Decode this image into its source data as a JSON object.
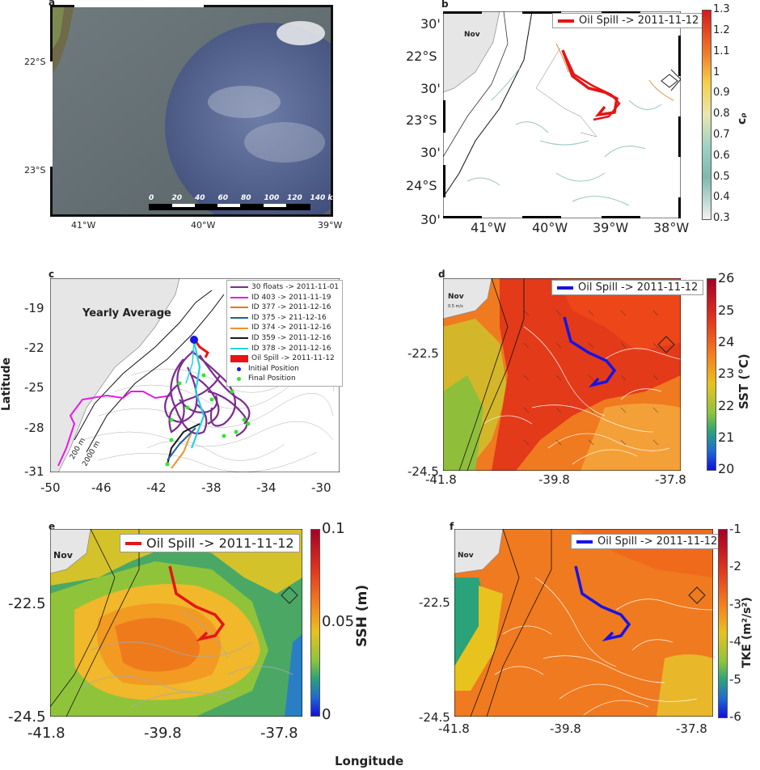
{
  "panels": {
    "a": {
      "label": "a",
      "lat_ticks": [
        "22°S",
        "23°S"
      ],
      "lon_ticks": [
        "41°W",
        "40°W",
        "39°W"
      ],
      "scale_ticks": [
        "0",
        "20",
        "40",
        "60",
        "80",
        "100",
        "120",
        "140 km"
      ]
    },
    "b": {
      "label": "b",
      "lat_ticks": [
        "30'",
        "22°S",
        "30'",
        "23°S",
        "30'",
        "24°S",
        "30'"
      ],
      "lon_ticks": [
        "41°W",
        "40°W",
        "39°W",
        "38°W"
      ],
      "land_label": "Nov",
      "legend": "Oil Spill -> 2011-11-12",
      "colorbar": {
        "title": "cᵨ",
        "ticks": [
          "1.3",
          "1.2",
          "1.1",
          "1",
          "0.9",
          "0.8",
          "0.7",
          "0.6",
          "0.5",
          "0.4",
          "0.3"
        ],
        "range": [
          0.3,
          1.3
        ]
      }
    },
    "c": {
      "label": "c",
      "title": "Yearly Average",
      "ylabel": "Latitude",
      "y_ticks": [
        "-19",
        "-22",
        "-25",
        "-28",
        "-31"
      ],
      "x_ticks": [
        "-50",
        "-46",
        "-42",
        "-38",
        "-34",
        "-30"
      ],
      "isobaths": [
        "200 m",
        "2000 m"
      ],
      "legend": [
        {
          "label": "30 floats -> 2011-11-01",
          "color": "#7b2d8e"
        },
        {
          "label": "ID 403 -> 2011-11-19",
          "color": "#e619e6"
        },
        {
          "label": "ID 377 -> 2011-12-16",
          "color": "#d97b2b"
        },
        {
          "label": "ID 375 -> 211-12-16",
          "color": "#1f5fa0"
        },
        {
          "label": "ID 374 -> 2011-12-16",
          "color": "#f0932b"
        },
        {
          "label": "ID 359 -> 2011-12-16",
          "color": "#1a1a1a"
        },
        {
          "label": "ID 378 -> 2011-12-16",
          "color": "#22d3e6"
        },
        {
          "label": "Oil Spill -> 2011-11-12",
          "color": "#e51515"
        },
        {
          "label": "Initial Position",
          "color": "#1515e5"
        },
        {
          "label": "Final Position",
          "color": "#33e533"
        }
      ]
    },
    "d": {
      "label": "d",
      "land_label": "Nov",
      "scale_text": "0.5 m/s",
      "legend": "Oil Spill -> 2011-11-12",
      "x_ticks": [
        "-41.8",
        "-39.8",
        "-37.8"
      ],
      "y_ticks": [
        "-22.5",
        "-24.5"
      ],
      "colorbar": {
        "title": "SST (°C)",
        "ticks": [
          "26",
          "25",
          "24",
          "23",
          "22",
          "21",
          "20"
        ],
        "range": [
          20,
          26
        ]
      }
    },
    "e": {
      "label": "e",
      "land_label": "Nov",
      "legend": "Oil Spill -> 2011-11-12",
      "x_ticks": [
        "-41.8",
        "-39.8",
        "-37.8"
      ],
      "y_ticks": [
        "-22.5",
        "-24.5"
      ],
      "colorbar": {
        "title": "SSH (m)",
        "ticks": [
          "0.1",
          "0.05",
          "0"
        ],
        "range": [
          0,
          0.1
        ]
      }
    },
    "f": {
      "label": "f",
      "land_label": "Nov",
      "legend": "Oil Spill -> 2011-11-12",
      "x_ticks": [
        "-41.8",
        "-39.8",
        "-37.8"
      ],
      "y_ticks": [
        "-22.5",
        "-24.5"
      ],
      "colorbar": {
        "title": "TKE (m²/s²)",
        "ticks": [
          "-1",
          "-2",
          "-3",
          "-4",
          "-5",
          "-6"
        ],
        "range": [
          -6,
          -1
        ]
      }
    }
  },
  "xlabel": "Longitude"
}
